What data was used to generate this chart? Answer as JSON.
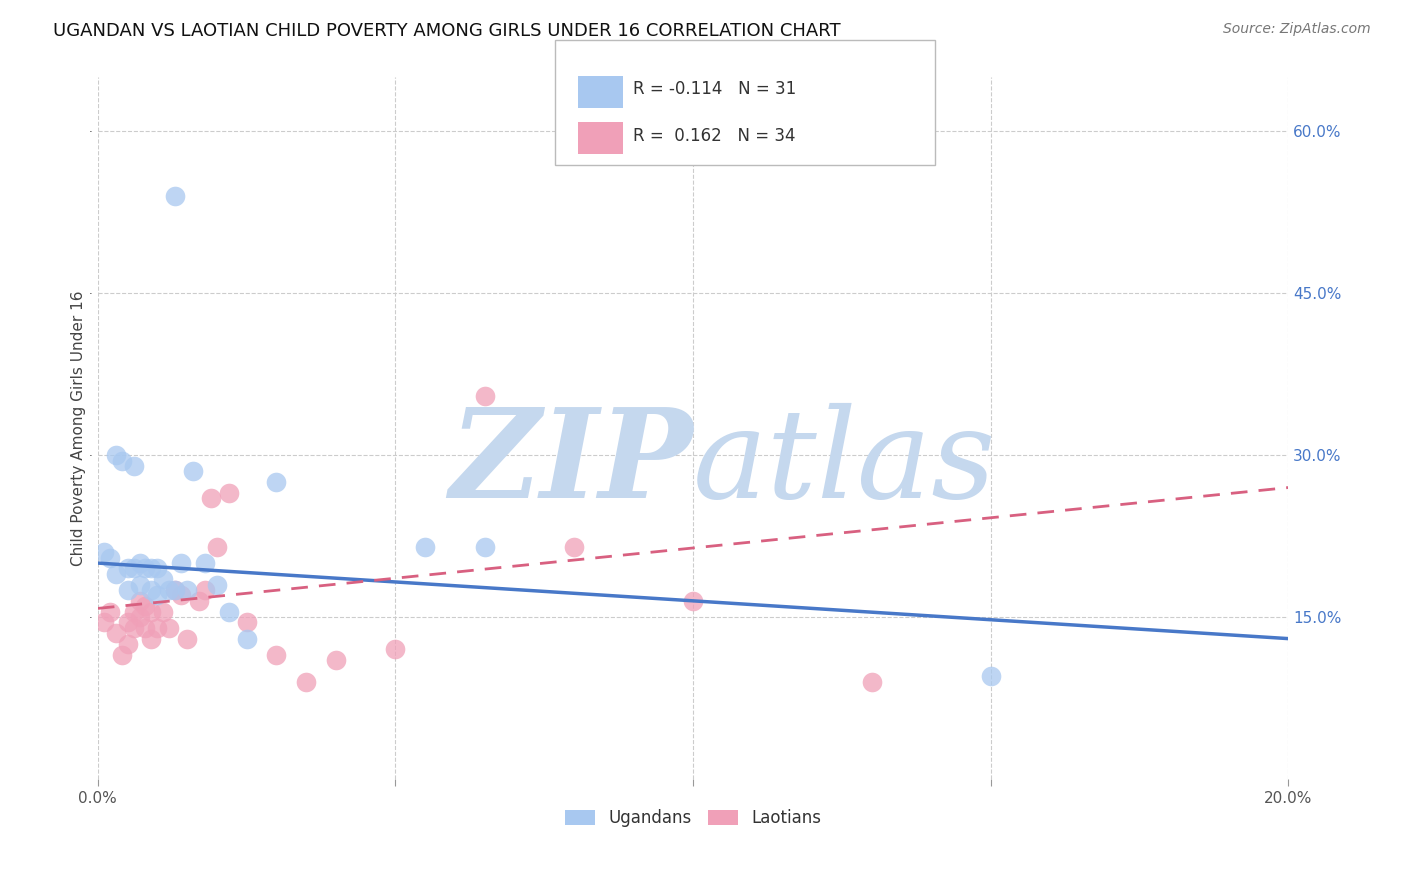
{
  "title": "UGANDAN VS LAOTIAN CHILD POVERTY AMONG GIRLS UNDER 16 CORRELATION CHART",
  "source": "Source: ZipAtlas.com",
  "ylabel": "Child Poverty Among Girls Under 16",
  "xlim": [
    0.0,
    0.2
  ],
  "ylim": [
    0.0,
    0.65
  ],
  "yticks": [
    0.15,
    0.3,
    0.45,
    0.6
  ],
  "ytick_labels": [
    "15.0%",
    "30.0%",
    "45.0%",
    "60.0%"
  ],
  "xticks": [
    0.0,
    0.05,
    0.1,
    0.15,
    0.2
  ],
  "background_color": "#ffffff",
  "ugandan_color": "#a8c8f0",
  "laotian_color": "#f0a0b8",
  "ugandan_line_color": "#4878c8",
  "laotian_line_color": "#d86080",
  "ugandan_R": -0.114,
  "ugandan_N": 31,
  "laotian_R": 0.162,
  "laotian_N": 34,
  "ugandan_x": [
    0.001,
    0.002,
    0.003,
    0.003,
    0.004,
    0.005,
    0.005,
    0.006,
    0.006,
    0.007,
    0.007,
    0.008,
    0.009,
    0.009,
    0.01,
    0.01,
    0.011,
    0.012,
    0.013,
    0.014,
    0.015,
    0.016,
    0.018,
    0.02,
    0.022,
    0.025,
    0.03,
    0.055,
    0.065,
    0.15,
    0.013
  ],
  "ugandan_y": [
    0.21,
    0.205,
    0.3,
    0.19,
    0.295,
    0.195,
    0.175,
    0.29,
    0.195,
    0.2,
    0.18,
    0.195,
    0.195,
    0.175,
    0.195,
    0.17,
    0.185,
    0.175,
    0.175,
    0.2,
    0.175,
    0.285,
    0.2,
    0.18,
    0.155,
    0.13,
    0.275,
    0.215,
    0.215,
    0.095,
    0.54
  ],
  "laotian_x": [
    0.001,
    0.002,
    0.003,
    0.004,
    0.005,
    0.005,
    0.006,
    0.006,
    0.007,
    0.007,
    0.008,
    0.008,
    0.009,
    0.009,
    0.01,
    0.011,
    0.012,
    0.013,
    0.014,
    0.015,
    0.017,
    0.018,
    0.019,
    0.02,
    0.022,
    0.025,
    0.03,
    0.035,
    0.04,
    0.05,
    0.065,
    0.08,
    0.1,
    0.13
  ],
  "laotian_y": [
    0.145,
    0.155,
    0.135,
    0.115,
    0.145,
    0.125,
    0.155,
    0.14,
    0.165,
    0.15,
    0.16,
    0.14,
    0.155,
    0.13,
    0.14,
    0.155,
    0.14,
    0.175,
    0.17,
    0.13,
    0.165,
    0.175,
    0.26,
    0.215,
    0.265,
    0.145,
    0.115,
    0.09,
    0.11,
    0.12,
    0.355,
    0.215,
    0.165,
    0.09
  ],
  "watermark_zip": "ZIP",
  "watermark_atlas": "atlas",
  "watermark_color": "#c8d8ec",
  "title_fontsize": 13,
  "axis_label_fontsize": 11,
  "tick_fontsize": 11,
  "legend_fontsize": 12,
  "source_fontsize": 10
}
